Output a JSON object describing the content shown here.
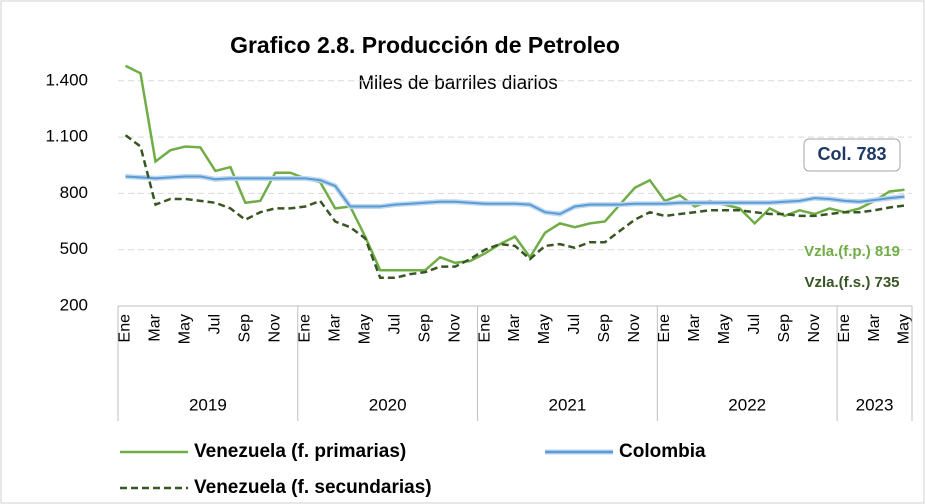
{
  "chart_data": {
    "type": "line",
    "title": "Grafico 2.8. Producción de Petroleo",
    "subtitle": "Miles de barriles diarios",
    "categories": [
      "Ene",
      null,
      "Mar",
      null,
      "May",
      null,
      "Jul",
      null,
      "Sep",
      null,
      "Nov",
      null,
      "Ene",
      null,
      "Mar",
      null,
      "May",
      null,
      "Jul",
      null,
      "Sep",
      null,
      "Nov",
      null,
      "Ene",
      null,
      "Mar",
      null,
      "May",
      null,
      "Jul",
      null,
      "Sep",
      null,
      "Nov",
      null,
      "Ene",
      null,
      "Mar",
      null,
      "May",
      null,
      "Jul",
      null,
      "Sep",
      null,
      "Nov",
      null,
      "Ene",
      null,
      "Mar",
      null,
      "May"
    ],
    "year_groups": [
      "2019",
      "2020",
      "2021",
      "2022",
      "2023"
    ],
    "ylim": [
      200,
      1500
    ],
    "yticks": [
      200,
      500,
      800,
      {
        "value": 1100,
        "label": "1.100"
      },
      {
        "value": 1400,
        "label": "1.400"
      }
    ],
    "grid": true,
    "series": [
      {
        "name": "Venezuela (f. primarias)",
        "color": "#70ad47",
        "dash": false,
        "values": [
          1480,
          1440,
          970,
          1030,
          1050,
          1045,
          920,
          940,
          750,
          760,
          910,
          910,
          880,
          860,
          720,
          730,
          570,
          390,
          390,
          390,
          390,
          460,
          430,
          440,
          480,
          530,
          570,
          460,
          590,
          640,
          620,
          640,
          650,
          740,
          830,
          870,
          760,
          790,
          730,
          760,
          740,
          720,
          640,
          720,
          680,
          710,
          690,
          720,
          700,
          720,
          760,
          810,
          819
        ]
      },
      {
        "name": "Colombia",
        "color": "#5b9bd5",
        "dash": false,
        "values": [
          890,
          885,
          880,
          885,
          890,
          890,
          875,
          880,
          880,
          880,
          880,
          880,
          880,
          870,
          840,
          730,
          730,
          730,
          740,
          745,
          750,
          755,
          755,
          750,
          745,
          745,
          745,
          740,
          700,
          690,
          730,
          740,
          740,
          740,
          745,
          745,
          745,
          750,
          750,
          750,
          750,
          750,
          750,
          750,
          755,
          760,
          775,
          770,
          760,
          755,
          765,
          775,
          783
        ]
      },
      {
        "name": "Venezuela (f. secundarias)",
        "color": "#375623",
        "dash": true,
        "values": [
          1110,
          1050,
          740,
          770,
          770,
          760,
          750,
          720,
          660,
          700,
          720,
          720,
          730,
          760,
          650,
          620,
          560,
          350,
          350,
          370,
          380,
          410,
          410,
          450,
          500,
          530,
          520,
          450,
          520,
          530,
          510,
          540,
          540,
          600,
          660,
          700,
          680,
          690,
          700,
          710,
          710,
          710,
          700,
          690,
          690,
          680,
          680,
          690,
          700,
          700,
          710,
          725,
          735
        ]
      }
    ],
    "annotations": [
      {
        "text": "Col. 783",
        "color": "#1f3864"
      },
      {
        "text": "Vzla.(f.p.) 819",
        "color": "#70ad47"
      },
      {
        "text": "Vzla.(f.s.) 735",
        "color": "#375623"
      }
    ]
  }
}
